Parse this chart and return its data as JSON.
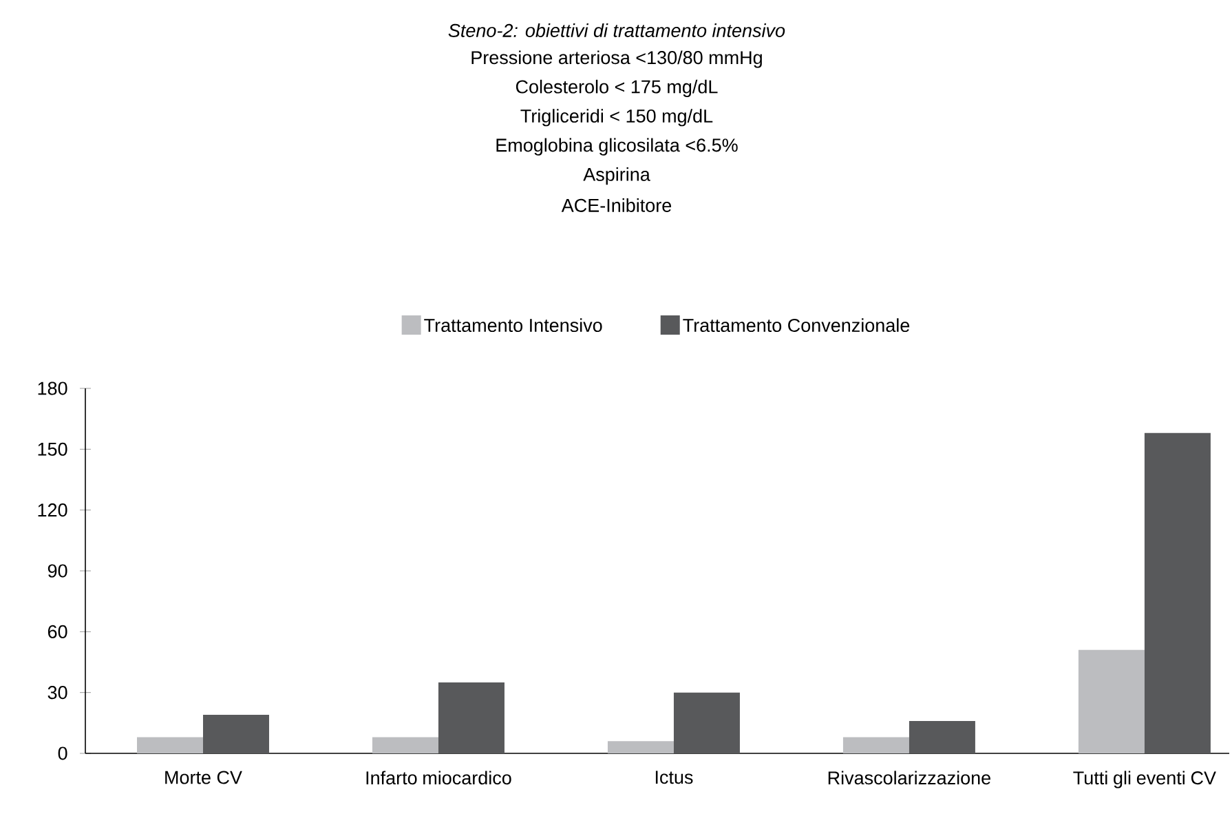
{
  "chart_data": {
    "type": "bar",
    "title": "Steno-2: obiettivi di trattamento intensivo",
    "annotations": [
      "Pressione arteriosa <130/80 mmHg",
      "Colesterolo < 175 mg/dL",
      "Trigliceridi < 150 mg/dL",
      "Emoglobina glicosilata <6.5%",
      "Aspirina",
      "ACE-Inibitore"
    ],
    "categories": [
      "Morte CV",
      "Infarto miocardico",
      "Ictus",
      "Rivascolarizzazione",
      "Tutti gli eventi CV"
    ],
    "series": [
      {
        "name": "Trattamento Intensivo",
        "color": "#bcbdc0",
        "values": [
          8,
          8,
          6,
          8,
          51
        ]
      },
      {
        "name": "Trattamento Convenzionale",
        "color": "#58595b",
        "values": [
          19,
          35,
          30,
          16,
          158
        ]
      }
    ],
    "ylim": [
      0,
      180
    ],
    "yticks": [
      0,
      30,
      60,
      90,
      120,
      150,
      180
    ],
    "grid": false,
    "legend": "top"
  }
}
